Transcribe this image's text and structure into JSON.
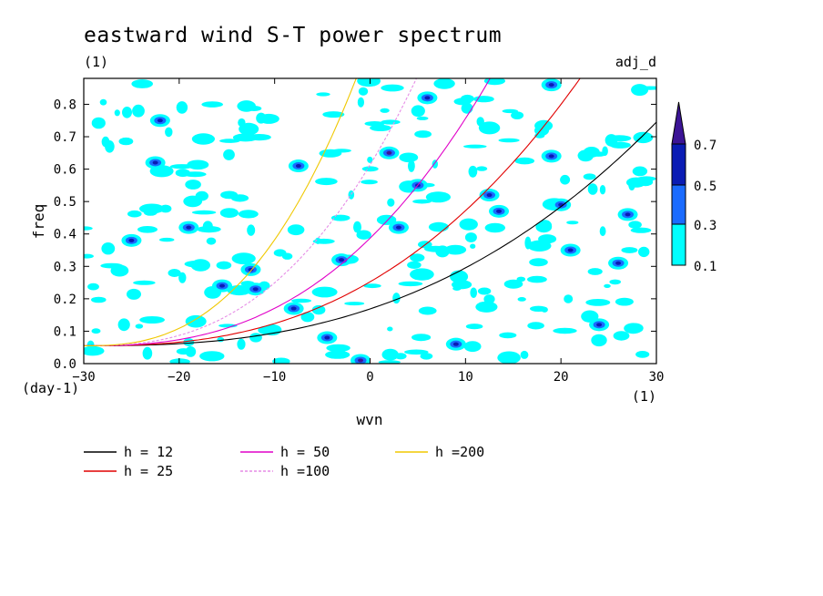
{
  "chart_data": {
    "type": "heatmap",
    "title": "eastward wind S-T power spectrum",
    "units_left": "(1)",
    "run_label": "adj_d",
    "xlabel": "wvn",
    "ylabel": "freq",
    "x_units": "(1)",
    "y_units": "(day-1)",
    "xlim": [
      -30,
      30
    ],
    "ylim": [
      0,
      0.88
    ],
    "xticks": [
      "−30",
      "−20",
      "−10",
      "0",
      "10",
      "20",
      "30"
    ],
    "xtick_values": [
      -30,
      -20,
      -10,
      0,
      10,
      20,
      30
    ],
    "yticks": [
      "0.0",
      "0.1",
      "0.2",
      "0.3",
      "0.4",
      "0.5",
      "0.6",
      "0.7",
      "0.8"
    ],
    "ytick_values": [
      0.0,
      0.1,
      0.2,
      0.3,
      0.4,
      0.5,
      0.6,
      0.7,
      0.8
    ],
    "colorbar": {
      "levels": [
        "0.1",
        "0.3",
        "0.5",
        "0.7"
      ],
      "level_values": [
        0.1,
        0.3,
        0.5,
        0.7
      ],
      "colors": [
        "#00ffff",
        "#1a6bff",
        "#0a1cb4",
        "#3c1496"
      ]
    },
    "high_power_spots": [
      {
        "x": -22.5,
        "y": 0.62,
        "v": 0.5
      },
      {
        "x": -22,
        "y": 0.75,
        "v": 0.5
      },
      {
        "x": -15.5,
        "y": 0.24,
        "v": 0.5
      },
      {
        "x": -12.5,
        "y": 0.29,
        "v": 0.5
      },
      {
        "x": -12,
        "y": 0.23,
        "v": 0.5
      },
      {
        "x": -8,
        "y": 0.17,
        "v": 0.5
      },
      {
        "x": -7.5,
        "y": 0.61,
        "v": 0.5
      },
      {
        "x": -4.5,
        "y": 0.08,
        "v": 0.5
      },
      {
        "x": -1,
        "y": 0.01,
        "v": 0.7
      },
      {
        "x": 2,
        "y": 0.65,
        "v": 0.7
      },
      {
        "x": 3,
        "y": 0.42,
        "v": 0.5
      },
      {
        "x": 5,
        "y": 0.55,
        "v": 0.5
      },
      {
        "x": 6,
        "y": 0.82,
        "v": 0.5
      },
      {
        "x": 12.5,
        "y": 0.52,
        "v": 0.5
      },
      {
        "x": 13.5,
        "y": 0.47,
        "v": 0.5
      },
      {
        "x": 19,
        "y": 0.86,
        "v": 0.5
      },
      {
        "x": 19,
        "y": 0.64,
        "v": 0.5
      },
      {
        "x": 20,
        "y": 0.49,
        "v": 0.5
      },
      {
        "x": 21,
        "y": 0.35,
        "v": 0.5
      },
      {
        "x": 26,
        "y": 0.31,
        "v": 0.5
      },
      {
        "x": 27,
        "y": 0.46,
        "v": 0.5
      },
      {
        "x": -25,
        "y": 0.38,
        "v": 0.5
      },
      {
        "x": -19,
        "y": 0.42,
        "v": 0.5
      },
      {
        "x": -3,
        "y": 0.32,
        "v": 0.5
      },
      {
        "x": 9,
        "y": 0.06,
        "v": 0.5
      },
      {
        "x": 24,
        "y": 0.12,
        "v": 0.5
      }
    ],
    "series": [
      {
        "name": "h = 12",
        "h": 12,
        "color": "#000000",
        "dash": ""
      },
      {
        "name": "h = 25",
        "h": 25,
        "color": "#e10000",
        "dash": ""
      },
      {
        "name": "h = 50",
        "h": 50,
        "color": "#e100c8",
        "dash": ""
      },
      {
        "name": "h =100",
        "h": 100,
        "color": "#e68ce6",
        "dash": "3,2"
      },
      {
        "name": "h =200",
        "h": 200,
        "color": "#f0c800",
        "dash": ""
      }
    ]
  }
}
